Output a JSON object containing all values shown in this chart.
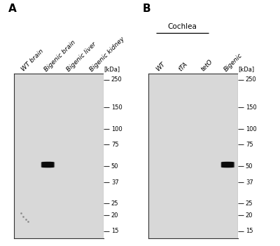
{
  "fig_width": 4.0,
  "fig_height": 3.51,
  "fig_bg": "#ffffff",
  "gel_bg": "#d8d8d8",
  "outer_bg": "#ffffff",
  "panel_a": {
    "label": "A",
    "lane_labels": [
      "WT brain",
      "Bigenic brain",
      "Bigenic liver",
      "Bigenic kidney"
    ],
    "n_lanes": 4,
    "kda_labels": [
      250,
      150,
      100,
      75,
      50,
      37,
      25,
      20,
      15
    ],
    "band_lane": 1,
    "band_kda": 52,
    "band_color": "#0a0a0a"
  },
  "panel_b": {
    "label": "B",
    "cochlea_label": "Cochlea",
    "cochlea_lanes": [
      0,
      2
    ],
    "lane_labels": [
      "WT",
      "tTA",
      "tetO",
      "Bigenic"
    ],
    "n_lanes": 4,
    "kda_labels": [
      250,
      150,
      100,
      75,
      50,
      37,
      25,
      20,
      15
    ],
    "band_lane": 3,
    "band_kda": 52,
    "band_color": "#0a0a0a"
  },
  "kda_values": [
    250,
    150,
    100,
    75,
    50,
    37,
    25,
    20,
    15
  ],
  "kda_min": 13,
  "kda_max": 280,
  "label_fontsize": 11,
  "lane_fontsize": 6.5,
  "kda_fontsize": 6.0,
  "cochlea_fontsize": 7.5
}
